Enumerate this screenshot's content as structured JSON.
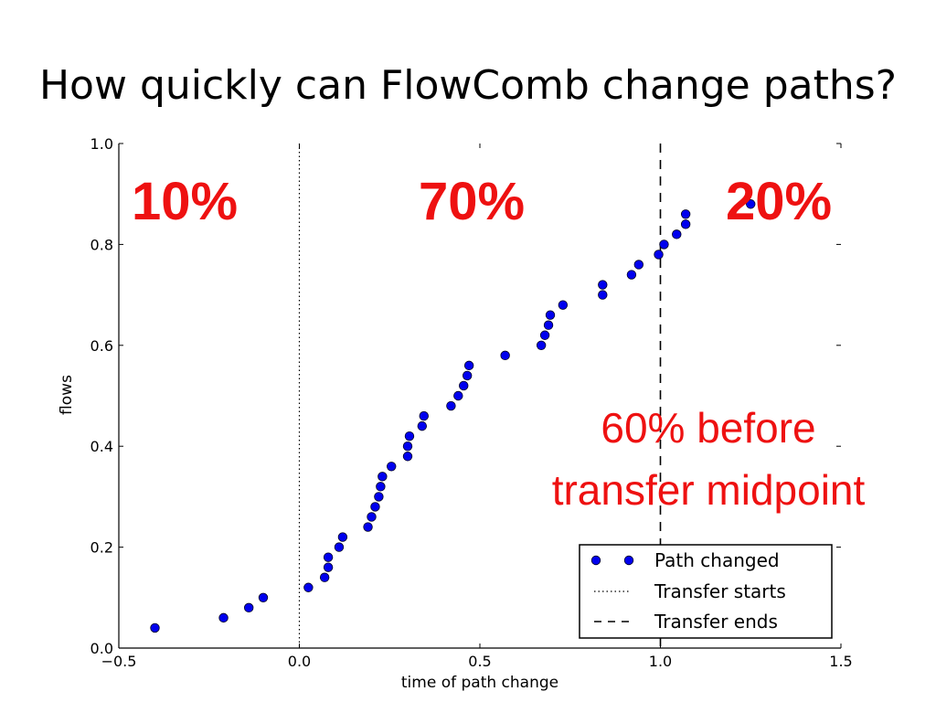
{
  "slide": {
    "title": "How quickly can FlowComb change paths?"
  },
  "annotations": {
    "pct_before": "10%",
    "pct_during": "70%",
    "pct_after": "20%",
    "note_line1": "60% before",
    "note_line2": "transfer midpoint",
    "color": "#ee1111"
  },
  "chart_data": {
    "type": "scatter",
    "xlabel": "time of path change",
    "ylabel": "flows",
    "xlim": [
      -0.5,
      1.5
    ],
    "ylim": [
      0.0,
      1.0
    ],
    "xticks": [
      "−0.5",
      "0.0",
      "0.5",
      "1.0",
      "1.5"
    ],
    "yticks": [
      "0.0",
      "0.2",
      "0.4",
      "0.6",
      "0.8",
      "1.0"
    ],
    "legend_position": "bottom-right",
    "series": [
      {
        "name": "Path changed",
        "color": "#0000ee",
        "points": [
          [
            -0.4,
            0.04
          ],
          [
            -0.21,
            0.06
          ],
          [
            -0.14,
            0.08
          ],
          [
            -0.1,
            0.1
          ],
          [
            0.025,
            0.12
          ],
          [
            0.07,
            0.14
          ],
          [
            0.08,
            0.16
          ],
          [
            0.08,
            0.18
          ],
          [
            0.11,
            0.2
          ],
          [
            0.12,
            0.22
          ],
          [
            0.19,
            0.24
          ],
          [
            0.2,
            0.26
          ],
          [
            0.21,
            0.28
          ],
          [
            0.22,
            0.3
          ],
          [
            0.225,
            0.32
          ],
          [
            0.23,
            0.34
          ],
          [
            0.255,
            0.36
          ],
          [
            0.3,
            0.38
          ],
          [
            0.3,
            0.4
          ],
          [
            0.305,
            0.42
          ],
          [
            0.34,
            0.44
          ],
          [
            0.345,
            0.46
          ],
          [
            0.42,
            0.48
          ],
          [
            0.44,
            0.5
          ],
          [
            0.455,
            0.52
          ],
          [
            0.465,
            0.54
          ],
          [
            0.47,
            0.56
          ],
          [
            0.57,
            0.58
          ],
          [
            0.67,
            0.6
          ],
          [
            0.68,
            0.62
          ],
          [
            0.69,
            0.64
          ],
          [
            0.695,
            0.66
          ],
          [
            0.73,
            0.68
          ],
          [
            0.84,
            0.7
          ],
          [
            0.84,
            0.72
          ],
          [
            0.92,
            0.74
          ],
          [
            0.94,
            0.76
          ],
          [
            0.995,
            0.78
          ],
          [
            1.01,
            0.8
          ],
          [
            1.045,
            0.82
          ],
          [
            1.07,
            0.84
          ],
          [
            1.07,
            0.86
          ],
          [
            1.25,
            0.88
          ]
        ]
      }
    ],
    "vlines": [
      {
        "name": "Transfer starts",
        "x": 0.0,
        "style": "dotted"
      },
      {
        "name": "Transfer ends",
        "x": 1.0,
        "style": "dashed"
      }
    ],
    "legend": [
      {
        "label": "Path changed",
        "kind": "marker"
      },
      {
        "label": "Transfer starts",
        "kind": "dotted"
      },
      {
        "label": "Transfer ends",
        "kind": "dashed"
      }
    ]
  }
}
